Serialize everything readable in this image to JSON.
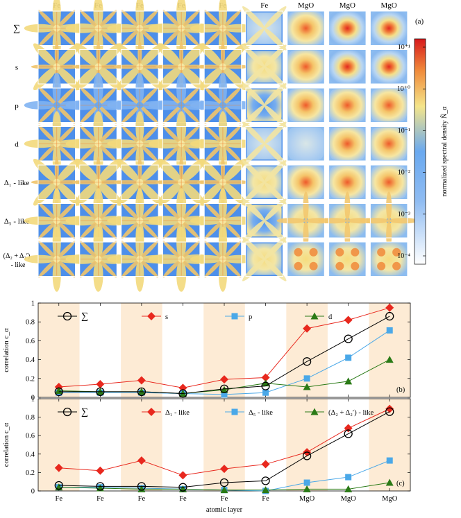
{
  "panel_a": {
    "panel_label": "(a)",
    "columns": [
      "Fe",
      "Fe",
      "Fe",
      "Fe",
      "Fe",
      "Fe",
      "MgO",
      "MgO",
      "MgO"
    ],
    "rows": [
      {
        "label": "∑"
      },
      {
        "label": "s"
      },
      {
        "label": "p"
      },
      {
        "label": "d"
      },
      {
        "label": "Δ₁ - like"
      },
      {
        "label": "Δ₅ - like"
      },
      {
        "label": "(Δ₂ + Δ₂′)",
        "label2": "- like"
      }
    ],
    "colorbar": {
      "label": "normalized spectral density Ñ_α",
      "ticks": [
        "10⁺¹",
        "10⁺⁰",
        "10⁻¹",
        "10⁻²",
        "10⁻³",
        "10⁻⁴"
      ],
      "scale": "log",
      "range": [
        0.0001,
        10
      ],
      "colors": [
        "#ffffff",
        "#6aa9f0",
        "#f4e58a",
        "#f08a3a",
        "#d7191c"
      ]
    }
  },
  "chart_data": [
    {
      "type": "line",
      "panel_label": "(b)",
      "ylabel": "correlation c_α",
      "xlabel": "",
      "categories": [
        "Fe",
        "Fe",
        "Fe",
        "Fe",
        "Fe",
        "Fe",
        "MgO",
        "MgO",
        "MgO"
      ],
      "ylim": [
        0,
        1
      ],
      "yticks": [
        "0",
        "0.2",
        "0.4",
        "0.6",
        "0.8",
        "1"
      ],
      "legend": "top",
      "shaded_columns": [
        0,
        2,
        4,
        6,
        8
      ],
      "series": [
        {
          "name": "∑",
          "marker": "circle",
          "color": "#000000",
          "values": [
            0.06,
            0.06,
            0.06,
            0.04,
            0.09,
            0.12,
            0.38,
            0.62,
            0.86
          ]
        },
        {
          "name": "s",
          "marker": "diamond",
          "color": "#e8281e",
          "values": [
            0.11,
            0.14,
            0.18,
            0.1,
            0.19,
            0.21,
            0.73,
            0.82,
            0.95
          ]
        },
        {
          "name": "p",
          "marker": "square",
          "color": "#4aa8e8",
          "values": [
            0.05,
            0.05,
            0.05,
            0.04,
            0.03,
            0.05,
            0.2,
            0.42,
            0.71
          ]
        },
        {
          "name": "d",
          "marker": "triangle",
          "color": "#2a7a16",
          "values": [
            0.07,
            0.06,
            0.06,
            0.04,
            0.08,
            0.15,
            0.11,
            0.17,
            0.4
          ]
        }
      ]
    },
    {
      "type": "line",
      "panel_label": "(c)",
      "ylabel": "correlation c_α",
      "xlabel": "atomic layer",
      "categories": [
        "Fe",
        "Fe",
        "Fe",
        "Fe",
        "Fe",
        "Fe",
        "MgO",
        "MgO",
        "MgO"
      ],
      "ylim": [
        0,
        1
      ],
      "yticks": [
        "0",
        "0.2",
        "0.4",
        "0.6",
        "0.8",
        "1"
      ],
      "legend": "top",
      "shaded_columns": [
        0,
        2,
        4,
        6,
        8
      ],
      "series": [
        {
          "name": "∑",
          "marker": "circle",
          "color": "#000000",
          "values": [
            0.06,
            0.05,
            0.05,
            0.04,
            0.09,
            0.11,
            0.38,
            0.62,
            0.86
          ]
        },
        {
          "name": "Δ₁ - like",
          "marker": "diamond",
          "color": "#e8281e",
          "values": [
            0.25,
            0.22,
            0.33,
            0.17,
            0.24,
            0.29,
            0.42,
            0.68,
            0.89
          ]
        },
        {
          "name": "Δ₅ - like",
          "marker": "square",
          "color": "#4aa8e8",
          "values": [
            0.04,
            0.04,
            0.03,
            0.02,
            0.01,
            0.0,
            0.09,
            0.15,
            0.33
          ]
        },
        {
          "name": "(Δ₂ + Δ₂′) - like",
          "marker": "triangle",
          "color": "#2a7a16",
          "values": [
            0.04,
            0.03,
            0.02,
            0.02,
            0.01,
            0.01,
            0.02,
            0.02,
            0.09
          ]
        }
      ]
    }
  ]
}
